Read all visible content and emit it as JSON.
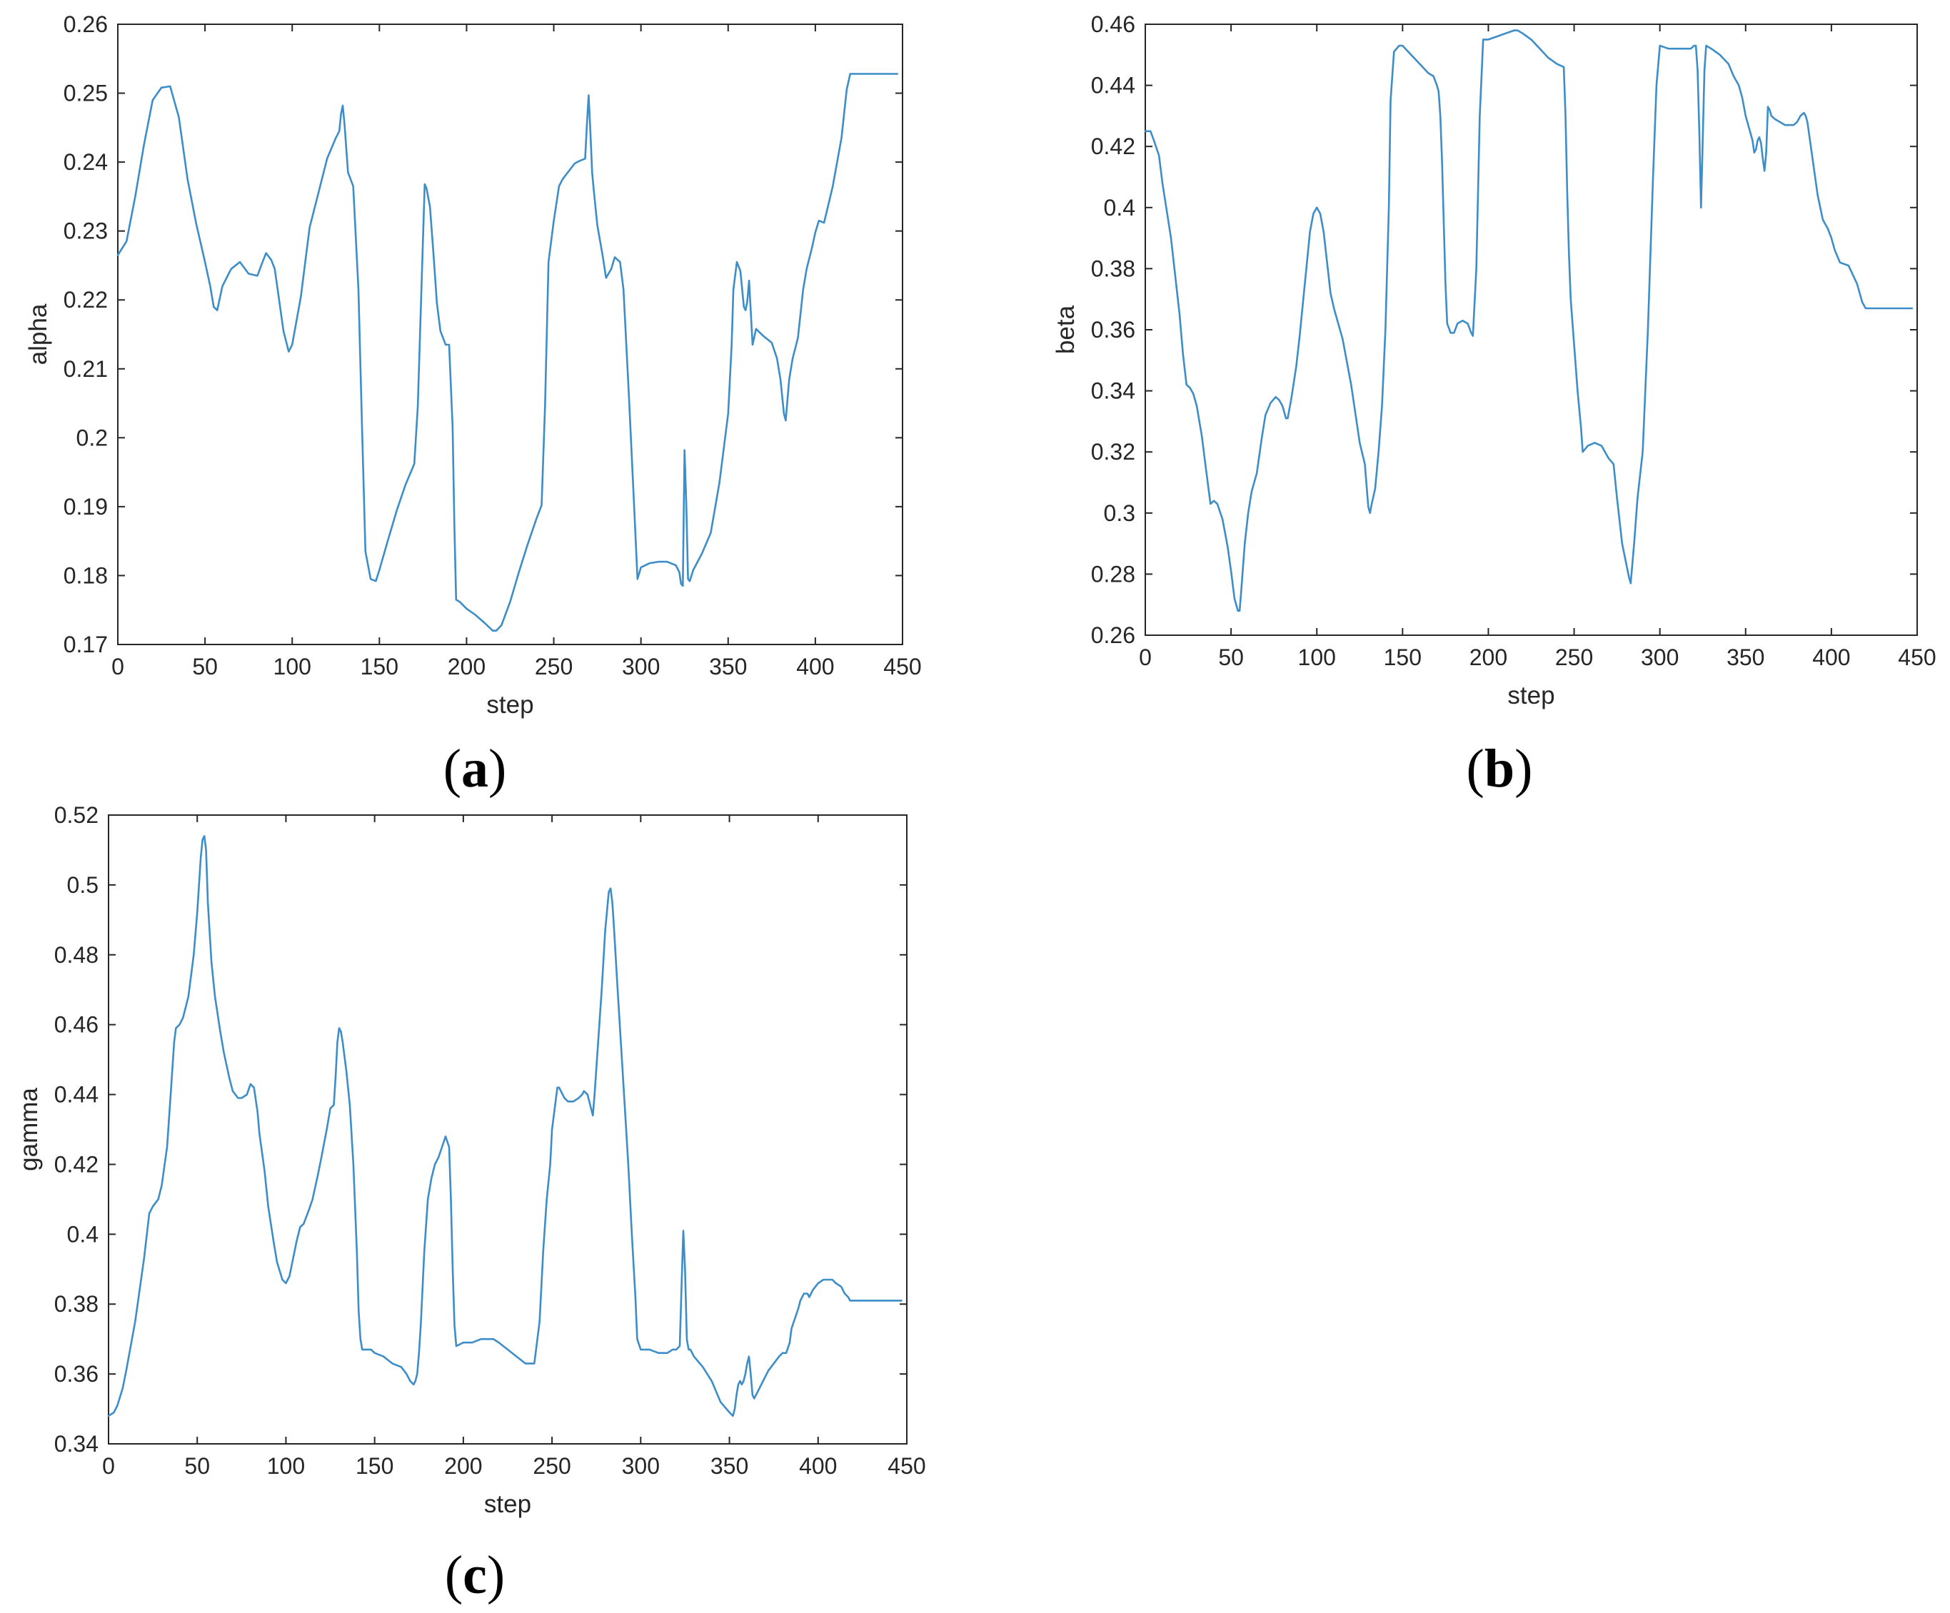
{
  "chart_data": [
    {
      "type": "line",
      "panel": "(a)",
      "xlabel": "step",
      "ylabel": "alpha",
      "xlim": [
        0,
        450
      ],
      "ylim": [
        0.17,
        0.26
      ],
      "xticks": [
        0,
        50,
        100,
        150,
        200,
        250,
        300,
        350,
        400,
        450
      ],
      "xtick_labels": [
        "0",
        "50",
        "100",
        "150",
        "200",
        "250",
        "300",
        "350",
        "400",
        "450"
      ],
      "yticks": [
        0.17,
        0.18,
        0.19,
        0.2,
        0.21,
        0.22,
        0.23,
        0.24,
        0.25,
        0.26
      ],
      "ytick_labels": [
        "0.17",
        "0.18",
        "0.19",
        "0.2",
        "0.21",
        "0.22",
        "0.23",
        "0.24",
        "0.25",
        "0.26"
      ],
      "grid": false,
      "color": "#3c8dc8",
      "x": [
        0,
        5,
        10,
        15,
        20,
        25,
        30,
        35,
        40,
        45,
        50,
        53,
        55,
        57,
        60,
        65,
        70,
        75,
        80,
        83,
        85,
        88,
        90,
        95,
        98,
        100,
        105,
        110,
        115,
        120,
        125,
        127,
        128,
        129,
        130,
        132,
        135,
        138,
        140,
        142,
        145,
        148,
        150,
        155,
        160,
        165,
        170,
        172,
        174,
        176,
        177,
        179,
        181,
        183,
        185,
        188,
        190,
        192,
        193,
        194,
        196,
        200,
        205,
        210,
        215,
        217,
        220,
        225,
        230,
        235,
        240,
        243,
        245,
        247,
        250,
        253,
        255,
        258,
        262,
        265,
        268,
        269,
        270,
        271,
        272,
        273,
        275,
        278,
        280,
        283,
        285,
        288,
        290,
        293,
        296,
        298,
        300,
        305,
        310,
        315,
        320,
        322,
        323,
        324,
        325,
        326,
        327,
        328,
        330,
        335,
        340,
        345,
        350,
        352,
        353,
        355,
        357,
        359,
        360,
        361,
        362,
        364,
        366,
        370,
        375,
        378,
        380,
        382,
        383,
        385,
        387,
        390,
        393,
        395,
        398,
        400,
        402,
        405,
        410,
        415,
        418,
        420,
        430,
        440,
        447
      ],
      "y": [
        0.2265,
        0.2285,
        0.235,
        0.2425,
        0.249,
        0.2508,
        0.251,
        0.2465,
        0.2375,
        0.231,
        0.2255,
        0.222,
        0.219,
        0.2185,
        0.222,
        0.2245,
        0.2255,
        0.2238,
        0.2235,
        0.2255,
        0.2268,
        0.2258,
        0.2245,
        0.2155,
        0.2125,
        0.2135,
        0.2205,
        0.2305,
        0.2355,
        0.2405,
        0.2435,
        0.2445,
        0.247,
        0.2482,
        0.2455,
        0.2385,
        0.2365,
        0.2215,
        0.202,
        0.1835,
        0.1795,
        0.1792,
        0.1808,
        0.1852,
        0.1895,
        0.1932,
        0.1962,
        0.2045,
        0.2205,
        0.2368,
        0.2362,
        0.2335,
        0.2268,
        0.2195,
        0.2155,
        0.2135,
        0.2135,
        0.2015,
        0.1875,
        0.1765,
        0.1762,
        0.1752,
        0.1743,
        0.1732,
        0.172,
        0.172,
        0.1728,
        0.1762,
        0.1805,
        0.1845,
        0.1882,
        0.1902,
        0.2045,
        0.2255,
        0.2315,
        0.2365,
        0.2375,
        0.2385,
        0.2398,
        0.2402,
        0.2405,
        0.2455,
        0.2497,
        0.2445,
        0.2385,
        0.2358,
        0.2308,
        0.2265,
        0.2232,
        0.2245,
        0.2262,
        0.2255,
        0.2215,
        0.2065,
        0.1905,
        0.1795,
        0.1812,
        0.1818,
        0.182,
        0.182,
        0.1815,
        0.1805,
        0.1788,
        0.1785,
        0.1982,
        0.1902,
        0.1795,
        0.1792,
        0.1808,
        0.1832,
        0.1862,
        0.1935,
        0.2035,
        0.2135,
        0.2215,
        0.2255,
        0.2242,
        0.219,
        0.2185,
        0.2198,
        0.2228,
        0.2135,
        0.2158,
        0.2148,
        0.2138,
        0.2115,
        0.2085,
        0.2035,
        0.2025,
        0.2085,
        0.2115,
        0.2145,
        0.2215,
        0.2245,
        0.2275,
        0.2298,
        0.2315,
        0.2312,
        0.2365,
        0.2435,
        0.2505,
        0.2528,
        0.2528,
        0.2528,
        0.2528
      ]
    },
    {
      "type": "line",
      "panel": "(b)",
      "xlabel": "step",
      "ylabel": "beta",
      "xlim": [
        0,
        450
      ],
      "ylim": [
        0.26,
        0.46
      ],
      "xticks": [
        0,
        50,
        100,
        150,
        200,
        250,
        300,
        350,
        400,
        450
      ],
      "xtick_labels": [
        "0",
        "50",
        "100",
        "150",
        "200",
        "250",
        "300",
        "350",
        "400",
        "450"
      ],
      "yticks": [
        0.26,
        0.28,
        0.3,
        0.32,
        0.34,
        0.36,
        0.38,
        0.4,
        0.42,
        0.44,
        0.46
      ],
      "ytick_labels": [
        "0.26",
        "0.28",
        "0.3",
        "0.32",
        "0.34",
        "0.36",
        "0.38",
        "0.4",
        "0.42",
        "0.44",
        "0.46"
      ],
      "grid": false,
      "color": "#3c8dc8",
      "x": [
        0,
        3,
        5,
        8,
        10,
        15,
        20,
        22,
        24,
        26,
        28,
        30,
        33,
        35,
        38,
        40,
        42,
        45,
        48,
        50,
        52,
        54,
        55,
        56,
        58,
        60,
        62,
        65,
        68,
        70,
        73,
        76,
        78,
        80,
        82,
        83,
        85,
        88,
        90,
        93,
        96,
        98,
        100,
        102,
        104,
        106,
        108,
        110,
        115,
        120,
        125,
        128,
        130,
        131,
        132,
        134,
        136,
        138,
        140,
        142,
        143,
        145,
        148,
        150,
        155,
        160,
        165,
        168,
        170,
        171,
        172,
        173,
        174,
        175,
        176,
        178,
        180,
        182,
        185,
        188,
        190,
        191,
        193,
        195,
        197,
        200,
        205,
        210,
        215,
        217,
        220,
        225,
        230,
        235,
        240,
        244,
        245,
        246,
        247,
        248,
        250,
        252,
        254,
        255,
        258,
        262,
        266,
        270,
        273,
        275,
        278,
        282,
        283,
        285,
        287,
        290,
        293,
        296,
        298,
        300,
        305,
        310,
        315,
        318,
        320,
        321,
        322,
        323,
        324,
        325,
        326,
        327,
        330,
        335,
        340,
        343,
        346,
        348,
        350,
        352,
        354,
        355,
        356,
        357,
        358,
        359,
        360,
        361,
        362,
        363,
        364,
        365,
        367,
        370,
        373,
        376,
        378,
        380,
        382,
        384,
        385,
        386,
        388,
        390,
        392,
        395,
        398,
        400,
        402,
        405,
        410,
        415,
        418,
        420,
        430,
        440,
        447
      ],
      "y": [
        0.425,
        0.425,
        0.422,
        0.417,
        0.408,
        0.39,
        0.365,
        0.352,
        0.342,
        0.341,
        0.339,
        0.335,
        0.325,
        0.316,
        0.303,
        0.304,
        0.303,
        0.298,
        0.289,
        0.281,
        0.272,
        0.268,
        0.268,
        0.275,
        0.29,
        0.3,
        0.307,
        0.313,
        0.325,
        0.332,
        0.336,
        0.338,
        0.337,
        0.335,
        0.331,
        0.331,
        0.337,
        0.348,
        0.358,
        0.375,
        0.392,
        0.398,
        0.4,
        0.398,
        0.392,
        0.382,
        0.372,
        0.367,
        0.357,
        0.342,
        0.323,
        0.316,
        0.302,
        0.3,
        0.303,
        0.308,
        0.32,
        0.335,
        0.36,
        0.4,
        0.435,
        0.451,
        0.453,
        0.453,
        0.45,
        0.447,
        0.444,
        0.443,
        0.44,
        0.438,
        0.43,
        0.415,
        0.395,
        0.375,
        0.362,
        0.359,
        0.359,
        0.362,
        0.363,
        0.362,
        0.359,
        0.358,
        0.38,
        0.43,
        0.455,
        0.455,
        0.456,
        0.457,
        0.458,
        0.458,
        0.457,
        0.455,
        0.452,
        0.449,
        0.447,
        0.446,
        0.43,
        0.405,
        0.385,
        0.37,
        0.355,
        0.34,
        0.328,
        0.32,
        0.322,
        0.323,
        0.322,
        0.318,
        0.316,
        0.305,
        0.29,
        0.279,
        0.277,
        0.29,
        0.305,
        0.32,
        0.36,
        0.41,
        0.44,
        0.453,
        0.452,
        0.452,
        0.452,
        0.452,
        0.453,
        0.453,
        0.445,
        0.425,
        0.4,
        0.422,
        0.445,
        0.453,
        0.452,
        0.45,
        0.447,
        0.443,
        0.44,
        0.436,
        0.43,
        0.426,
        0.422,
        0.418,
        0.419,
        0.422,
        0.423,
        0.421,
        0.416,
        0.412,
        0.418,
        0.433,
        0.432,
        0.43,
        0.429,
        0.428,
        0.427,
        0.427,
        0.427,
        0.428,
        0.43,
        0.431,
        0.43,
        0.428,
        0.42,
        0.412,
        0.404,
        0.396,
        0.393,
        0.39,
        0.386,
        0.382,
        0.381,
        0.375,
        0.369,
        0.367,
        0.367,
        0.367,
        0.367
      ]
    },
    {
      "type": "line",
      "panel": "(c)",
      "xlabel": "step",
      "ylabel": "gamma",
      "xlim": [
        0,
        450
      ],
      "ylim": [
        0.34,
        0.52
      ],
      "xticks": [
        0,
        50,
        100,
        150,
        200,
        250,
        300,
        350,
        400,
        450
      ],
      "xtick_labels": [
        "0",
        "50",
        "100",
        "150",
        "200",
        "250",
        "300",
        "350",
        "400",
        "450"
      ],
      "yticks": [
        0.34,
        0.36,
        0.38,
        0.4,
        0.42,
        0.44,
        0.46,
        0.48,
        0.5,
        0.52
      ],
      "ytick_labels": [
        "0.34",
        "0.36",
        "0.38",
        "0.4",
        "0.42",
        "0.44",
        "0.46",
        "0.48",
        "0.5",
        "0.52"
      ],
      "grid": false,
      "color": "#3c8dc8",
      "x": [
        0,
        3,
        5,
        8,
        10,
        15,
        20,
        23,
        25,
        28,
        30,
        33,
        35,
        37,
        38,
        40,
        42,
        45,
        48,
        50,
        52,
        53,
        54,
        55,
        56,
        58,
        60,
        63,
        65,
        68,
        70,
        73,
        75,
        78,
        80,
        82,
        84,
        85,
        88,
        90,
        93,
        95,
        98,
        100,
        102,
        104,
        106,
        108,
        110,
        113,
        115,
        118,
        120,
        123,
        125,
        127,
        128,
        129,
        130,
        131,
        132,
        134,
        136,
        138,
        140,
        141,
        142,
        143,
        145,
        148,
        150,
        155,
        160,
        165,
        168,
        170,
        172,
        173,
        174,
        175,
        176,
        178,
        180,
        182,
        184,
        186,
        188,
        190,
        192,
        193,
        194,
        195,
        196,
        200,
        205,
        210,
        215,
        217,
        220,
        225,
        230,
        235,
        240,
        243,
        245,
        247,
        249,
        250,
        252,
        253,
        254,
        255,
        257,
        259,
        262,
        265,
        267,
        268,
        270,
        271,
        272,
        273,
        274,
        276,
        278,
        280,
        282,
        283,
        284,
        285,
        287,
        290,
        293,
        295,
        297,
        298,
        300,
        305,
        310,
        315,
        318,
        320,
        322,
        323,
        324,
        325,
        326,
        327,
        328,
        330,
        335,
        340,
        345,
        350,
        352,
        353,
        354,
        355,
        356,
        357,
        358,
        359,
        360,
        361,
        362,
        363,
        364,
        365,
        368,
        370,
        372,
        375,
        378,
        380,
        382,
        384,
        385,
        387,
        389,
        390,
        392,
        394,
        395,
        397,
        400,
        403,
        405,
        408,
        410,
        413,
        415,
        417,
        418,
        420,
        430,
        440,
        447
      ],
      "y": [
        0.348,
        0.349,
        0.351,
        0.356,
        0.361,
        0.375,
        0.393,
        0.406,
        0.408,
        0.41,
        0.414,
        0.425,
        0.44,
        0.455,
        0.459,
        0.46,
        0.462,
        0.468,
        0.48,
        0.492,
        0.508,
        0.513,
        0.514,
        0.51,
        0.495,
        0.478,
        0.468,
        0.458,
        0.452,
        0.445,
        0.441,
        0.439,
        0.439,
        0.44,
        0.443,
        0.442,
        0.435,
        0.429,
        0.418,
        0.408,
        0.398,
        0.392,
        0.387,
        0.386,
        0.388,
        0.393,
        0.398,
        0.402,
        0.403,
        0.407,
        0.41,
        0.417,
        0.422,
        0.43,
        0.436,
        0.437,
        0.445,
        0.455,
        0.459,
        0.458,
        0.455,
        0.447,
        0.437,
        0.42,
        0.395,
        0.378,
        0.37,
        0.367,
        0.367,
        0.367,
        0.366,
        0.365,
        0.363,
        0.362,
        0.36,
        0.358,
        0.357,
        0.358,
        0.36,
        0.366,
        0.374,
        0.395,
        0.41,
        0.416,
        0.42,
        0.422,
        0.425,
        0.428,
        0.425,
        0.41,
        0.39,
        0.374,
        0.368,
        0.369,
        0.369,
        0.37,
        0.37,
        0.37,
        0.369,
        0.367,
        0.365,
        0.363,
        0.363,
        0.375,
        0.395,
        0.41,
        0.42,
        0.43,
        0.438,
        0.442,
        0.442,
        0.441,
        0.439,
        0.438,
        0.438,
        0.439,
        0.44,
        0.441,
        0.44,
        0.438,
        0.436,
        0.434,
        0.44,
        0.455,
        0.47,
        0.487,
        0.498,
        0.499,
        0.495,
        0.487,
        0.47,
        0.445,
        0.42,
        0.4,
        0.382,
        0.37,
        0.367,
        0.367,
        0.366,
        0.366,
        0.367,
        0.367,
        0.368,
        0.385,
        0.401,
        0.39,
        0.37,
        0.367,
        0.367,
        0.365,
        0.362,
        0.358,
        0.352,
        0.349,
        0.348,
        0.35,
        0.354,
        0.357,
        0.358,
        0.357,
        0.358,
        0.36,
        0.363,
        0.365,
        0.36,
        0.354,
        0.353,
        0.354,
        0.357,
        0.359,
        0.361,
        0.363,
        0.365,
        0.366,
        0.366,
        0.369,
        0.373,
        0.376,
        0.379,
        0.381,
        0.383,
        0.383,
        0.382,
        0.384,
        0.386,
        0.387,
        0.387,
        0.387,
        0.386,
        0.385,
        0.383,
        0.382,
        0.381,
        0.381,
        0.381,
        0.381,
        0.381
      ]
    }
  ]
}
